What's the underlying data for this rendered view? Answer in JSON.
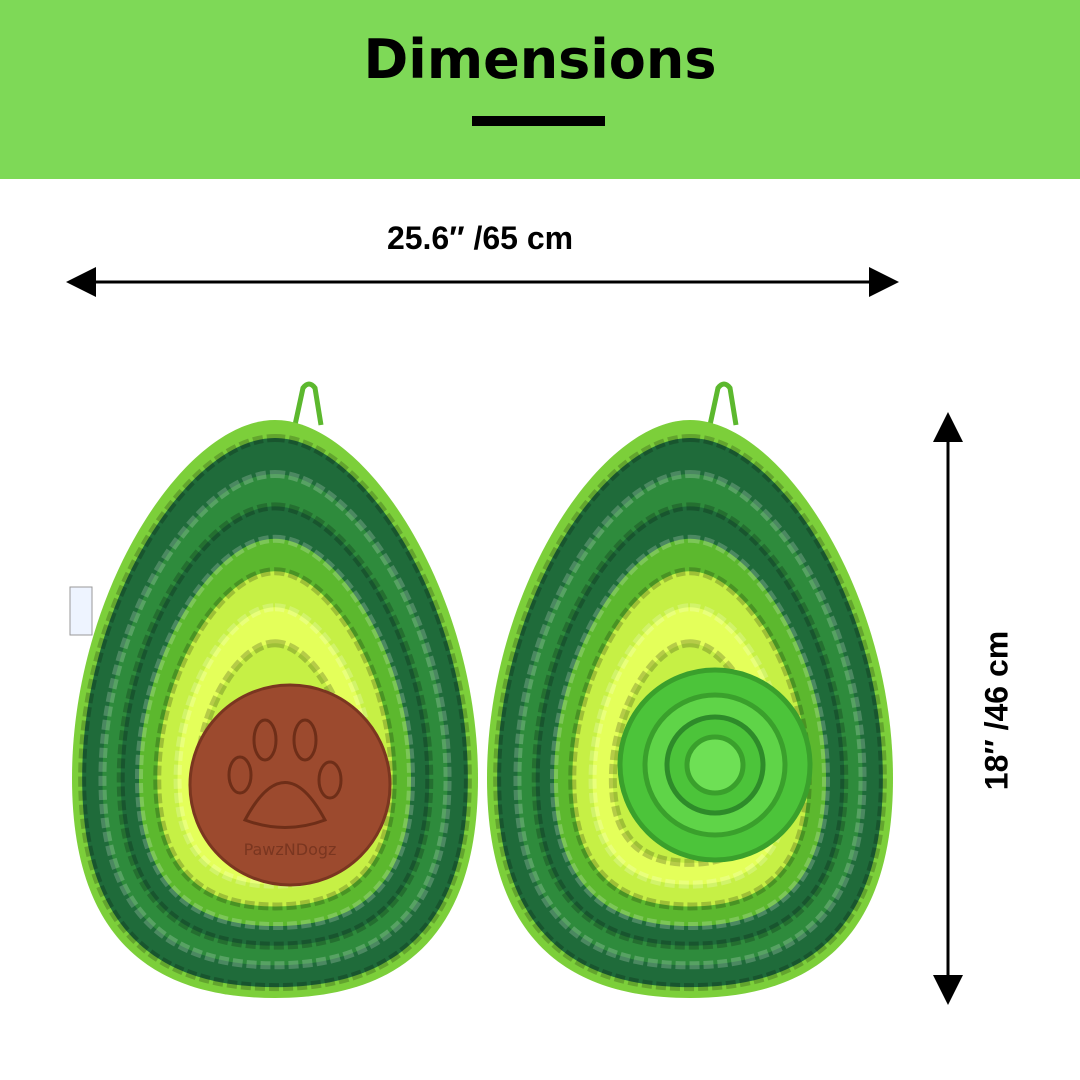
{
  "header": {
    "title": "Dimensions",
    "background_color": "#7ed957"
  },
  "dimensions": {
    "width_label": "25.6″  /65 cm",
    "height_label": "18″  /46 cm"
  },
  "product": {
    "brand_logo_text": "PawzNDogz",
    "colors": {
      "rim": "#7ccf3a",
      "dark_green": "#1f6b3a",
      "medium_green": "#2e8b3c",
      "green": "#5cb82e",
      "lime": "#c6f045",
      "pale_lime": "#e4ff5a",
      "pit_brown": "#9c4a2e",
      "rose_green": "#4cc43a"
    }
  }
}
